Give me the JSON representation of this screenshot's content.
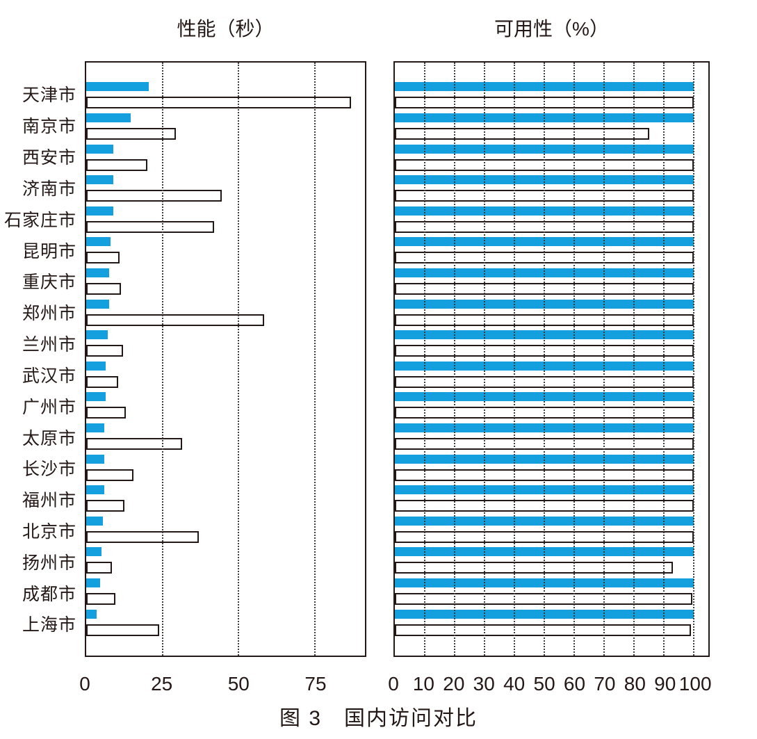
{
  "figure": {
    "caption": "图 3　国内访问对比"
  },
  "colors": {
    "bar_blue": "#14A0DE",
    "bar_outline": "#231815",
    "text": "#231815"
  },
  "chart_data": [
    {
      "type": "bar",
      "orientation": "horizontal",
      "title": "性能（秒）",
      "xlabel": "",
      "ylabel": "",
      "xlim": [
        0,
        91.5
      ],
      "xticks": [
        0,
        25,
        50,
        75
      ],
      "grid": "dotted-vertical",
      "legend": "none",
      "categories": [
        "天津市",
        "南京市",
        "西安市",
        "济南市",
        "石家庄市",
        "昆明市",
        "重庆市",
        "郑州市",
        "兰州市",
        "武汉市",
        "广州市",
        "太原市",
        "长沙市",
        "福州市",
        "北京市",
        "扬州市",
        "成都市",
        "上海市"
      ],
      "series": [
        {
          "name": "blue-filled",
          "values": [
            20.5,
            14.5,
            9,
            9,
            9,
            8,
            7.5,
            7.5,
            7,
            6.5,
            6.5,
            6,
            6,
            6,
            5.5,
            5,
            4.5,
            3.5
          ]
        },
        {
          "name": "white-outlined",
          "values": [
            87,
            29.5,
            20,
            44.5,
            42,
            11,
            11.5,
            58.5,
            12,
            10.5,
            13,
            31.5,
            15.5,
            12.5,
            37,
            8.5,
            9.5,
            24
          ]
        }
      ]
    },
    {
      "type": "bar",
      "orientation": "horizontal",
      "title": "可用性（%）",
      "xlabel": "",
      "ylabel": "",
      "xlim": [
        0,
        104.8
      ],
      "xticks": [
        0,
        10,
        20,
        30,
        40,
        50,
        60,
        70,
        80,
        90,
        100
      ],
      "grid": "dotted-vertical",
      "legend": "none",
      "categories": [
        "天津市",
        "南京市",
        "西安市",
        "济南市",
        "石家庄市",
        "昆明市",
        "重庆市",
        "郑州市",
        "兰州市",
        "武汉市",
        "广州市",
        "太原市",
        "长沙市",
        "福州市",
        "北京市",
        "扬州市",
        "成都市",
        "上海市"
      ],
      "series": [
        {
          "name": "blue-filled",
          "values": [
            100,
            100,
            100,
            100,
            100,
            100,
            100,
            100,
            100,
            100,
            100,
            100,
            100,
            100,
            100,
            100,
            100,
            100
          ]
        },
        {
          "name": "white-outlined",
          "values": [
            100,
            85,
            100,
            100,
            100,
            100,
            100,
            100,
            100,
            100,
            100,
            100,
            100,
            100,
            100,
            93,
            99.5,
            99
          ]
        }
      ]
    }
  ]
}
